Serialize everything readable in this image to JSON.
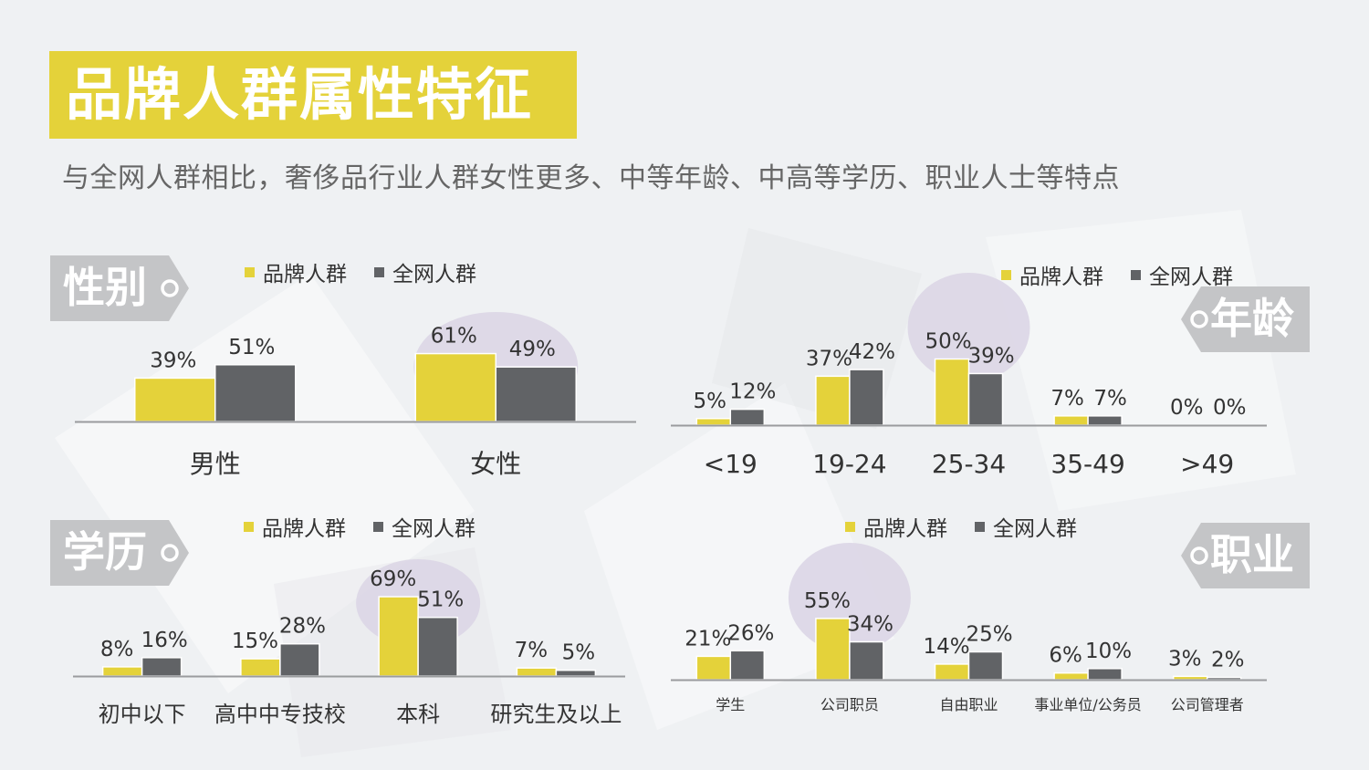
{
  "title": "品牌人群属性特征",
  "subtitle": "与全网人群相比，奢侈品行业人群女性更多、中等年龄、中高等学历、职业人士等特点",
  "colors": {
    "brand": "#e4d23a",
    "all": "#616366",
    "highlight": "#dcd6e6",
    "badge": "#c4c5c7"
  },
  "legend": {
    "brand": "品牌人群",
    "all": "全网人群"
  },
  "sections": {
    "gender": "性别",
    "age": "年龄",
    "education": "学历",
    "occupation": "职业"
  },
  "chart_data": [
    {
      "id": "gender",
      "type": "bar",
      "ylim": [
        0,
        100
      ],
      "categories": [
        "男性",
        "女性"
      ],
      "series": [
        {
          "name": "品牌人群",
          "values": [
            39,
            61
          ],
          "labels": [
            "39%",
            "61%"
          ]
        },
        {
          "name": "全网人群",
          "values": [
            51,
            49
          ],
          "labels": [
            "51%",
            "49%"
          ]
        }
      ],
      "highlight_index": 1
    },
    {
      "id": "age",
      "type": "bar",
      "ylim": [
        0,
        100
      ],
      "categories": [
        "<19",
        "19-24",
        "25-34",
        "35-49",
        ">49"
      ],
      "series": [
        {
          "name": "品牌人群",
          "values": [
            5,
            37,
            50,
            7,
            0
          ],
          "labels": [
            "5%",
            "37%",
            "50%",
            "7%",
            "0%"
          ]
        },
        {
          "name": "全网人群",
          "values": [
            12,
            42,
            39,
            7,
            0
          ],
          "labels": [
            "12%",
            "42%",
            "39%",
            "7%",
            "0%"
          ]
        }
      ],
      "highlight_index": 2
    },
    {
      "id": "education",
      "type": "bar",
      "ylim": [
        0,
        100
      ],
      "categories": [
        "初中以下",
        "高中中专技校",
        "本科",
        "研究生及以上"
      ],
      "series": [
        {
          "name": "品牌人群",
          "values": [
            8,
            15,
            69,
            7
          ],
          "labels": [
            "8%",
            "15%",
            "69%",
            "7%"
          ]
        },
        {
          "name": "全网人群",
          "values": [
            16,
            28,
            51,
            5
          ],
          "labels": [
            "16%",
            "28%",
            "51%",
            "5%"
          ]
        }
      ],
      "highlight_index": 2
    },
    {
      "id": "occupation",
      "type": "bar",
      "ylim": [
        0,
        100
      ],
      "categories": [
        "学生",
        "公司职员",
        "自由职业",
        "事业单位/公务员",
        "公司管理者"
      ],
      "series": [
        {
          "name": "品牌人群",
          "values": [
            21,
            55,
            14,
            6,
            3
          ],
          "labels": [
            "21%",
            "55%",
            "14%",
            "6%",
            "3%"
          ]
        },
        {
          "name": "全网人群",
          "values": [
            26,
            34,
            25,
            10,
            2
          ],
          "labels": [
            "26%",
            "34%",
            "25%",
            "10%",
            "2%"
          ]
        }
      ],
      "highlight_index": 1
    }
  ]
}
